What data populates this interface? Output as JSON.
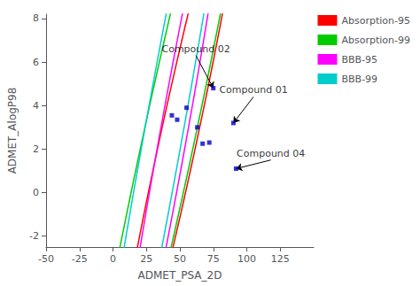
{
  "chart_data": {
    "type": "scatter",
    "xlabel": "ADMET_PSA_2D",
    "ylabel": "ADMET_AlogP98",
    "xlim": [
      -50,
      150
    ],
    "ylim": [
      -2.5,
      8.2
    ],
    "xticks": [
      -50,
      -25,
      0,
      25,
      50,
      75,
      100,
      125
    ],
    "yticks": [
      -2,
      0,
      2,
      4,
      6,
      8
    ],
    "grid": false,
    "legend": "right",
    "marker": "square",
    "color": "#0000cc",
    "points": [
      [
        75,
        4.8
      ],
      [
        90,
        3.2
      ],
      [
        92,
        1.1
      ],
      [
        44,
        3.55
      ],
      [
        48,
        3.35
      ],
      [
        55,
        3.9
      ],
      [
        63,
        3.0
      ],
      [
        67,
        2.25
      ],
      [
        72,
        2.3
      ]
    ],
    "annotations": [
      {
        "text": "Compound 02",
        "x": 75,
        "y": 4.8,
        "tx": 62,
        "ty": 6.3
      },
      {
        "text": "Compound 01",
        "x": 90,
        "y": 3.2,
        "tx": 105,
        "ty": 4.4
      },
      {
        "text": "Compound 04",
        "x": 92,
        "y": 1.1,
        "tx": 118,
        "ty": 1.5
      }
    ],
    "ellipses": [
      {
        "name": "Absorption-95",
        "color": "#ff0000",
        "cx": 48,
        "cy": 2.2,
        "width": 110,
        "height": 7.5,
        "angle": 15
      },
      {
        "name": "Absorption-99",
        "color": "#00cc00",
        "cx": 40,
        "cy": 2.0,
        "width": 150,
        "height": 10.5,
        "angle": 15
      },
      {
        "name": "BBB-95",
        "color": "#ff00ff",
        "cx": 45,
        "cy": 2.6,
        "width": 95,
        "height": 6.5,
        "angle": 18
      },
      {
        "name": "BBB-99",
        "color": "#00cccc",
        "cx": 38,
        "cy": 2.8,
        "width": 132,
        "height": 9.2,
        "angle": 18
      }
    ]
  }
}
